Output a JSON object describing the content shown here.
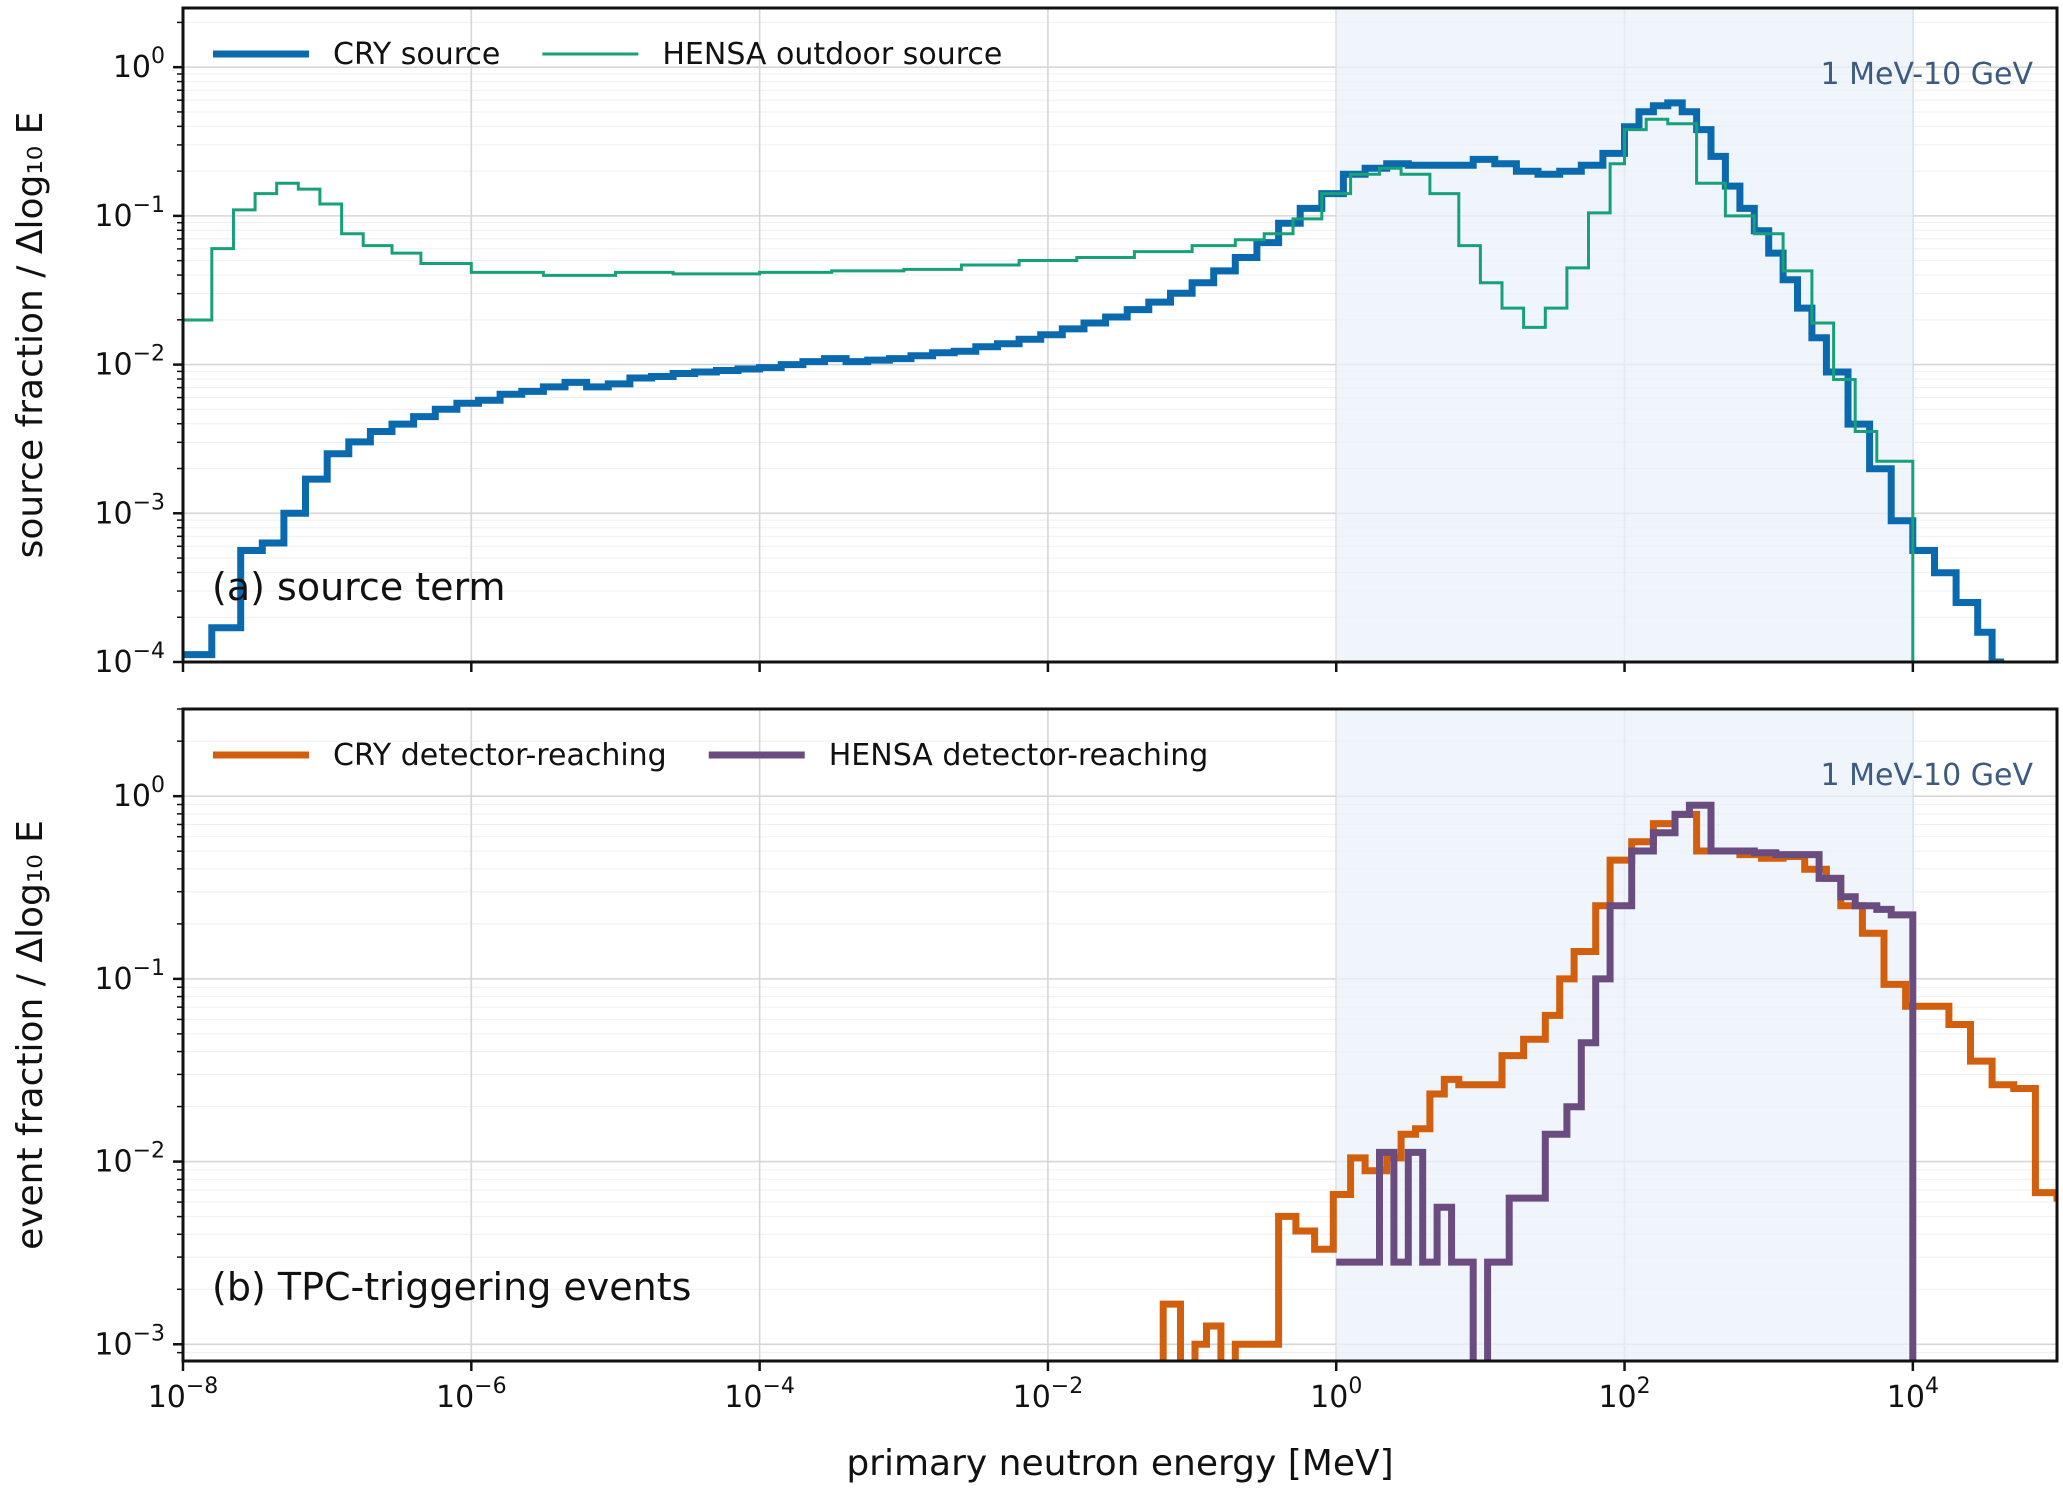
{
  "chart_data": [
    {
      "type": "line",
      "panel_label": "(a) source term",
      "ylabel": "source fraction / Δlog₁₀ E",
      "xlabel": "",
      "xscale": "log",
      "yscale": "log",
      "xlim": [
        1e-08,
        100000.0
      ],
      "ylim": [
        0.0001,
        2.5
      ],
      "x_ticks": [
        {
          "base": "10",
          "exp": "−8"
        },
        {
          "base": "10",
          "exp": "−6"
        },
        {
          "base": "10",
          "exp": "−4"
        },
        {
          "base": "10",
          "exp": "−2"
        },
        {
          "base": "10",
          "exp": "0"
        },
        {
          "base": "10",
          "exp": "2"
        },
        {
          "base": "10",
          "exp": "4"
        }
      ],
      "y_ticks": [
        {
          "base": "10",
          "exp": "0",
          "value": 1
        },
        {
          "base": "10",
          "exp": "−1",
          "value": 0.1
        },
        {
          "base": "10",
          "exp": "−2",
          "value": 0.01
        },
        {
          "base": "10",
          "exp": "−3",
          "value": 0.001
        },
        {
          "base": "10",
          "exp": "−4",
          "value": 0.0001
        }
      ],
      "band": {
        "x": [
          1,
          10000
        ],
        "label": "1 MeV-10 GeV"
      },
      "legend_position": "top-left",
      "grid": true,
      "series": [
        {
          "name": "CRY source",
          "color": "#0a6aad",
          "width": 7,
          "points": [
            [
              -8.0,
              -3.95
            ],
            [
              -7.8,
              -3.77
            ],
            [
              -7.6,
              -3.25
            ],
            [
              -7.45,
              -3.2
            ],
            [
              -7.3,
              -3.0
            ],
            [
              -7.15,
              -2.77
            ],
            [
              -7.0,
              -2.6
            ],
            [
              -6.85,
              -2.52
            ],
            [
              -6.7,
              -2.45
            ],
            [
              -6.55,
              -2.4
            ],
            [
              -6.4,
              -2.35
            ],
            [
              -6.25,
              -2.3
            ],
            [
              -6.1,
              -2.26
            ],
            [
              -5.95,
              -2.24
            ],
            [
              -5.8,
              -2.2
            ],
            [
              -5.65,
              -2.18
            ],
            [
              -5.5,
              -2.15
            ],
            [
              -5.35,
              -2.12
            ],
            [
              -5.2,
              -2.15
            ],
            [
              -5.05,
              -2.13
            ],
            [
              -4.9,
              -2.09
            ],
            [
              -4.75,
              -2.08
            ],
            [
              -4.6,
              -2.06
            ],
            [
              -4.45,
              -2.05
            ],
            [
              -4.3,
              -2.04
            ],
            [
              -4.15,
              -2.03
            ],
            [
              -4.0,
              -2.02
            ],
            [
              -3.85,
              -2.0
            ],
            [
              -3.7,
              -1.98
            ],
            [
              -3.55,
              -1.96
            ],
            [
              -3.4,
              -1.98
            ],
            [
              -3.25,
              -1.97
            ],
            [
              -3.1,
              -1.96
            ],
            [
              -2.95,
              -1.94
            ],
            [
              -2.8,
              -1.92
            ],
            [
              -2.65,
              -1.91
            ],
            [
              -2.5,
              -1.88
            ],
            [
              -2.35,
              -1.86
            ],
            [
              -2.2,
              -1.83
            ],
            [
              -2.05,
              -1.8
            ],
            [
              -1.9,
              -1.76
            ],
            [
              -1.75,
              -1.72
            ],
            [
              -1.6,
              -1.68
            ],
            [
              -1.45,
              -1.63
            ],
            [
              -1.3,
              -1.58
            ],
            [
              -1.15,
              -1.52
            ],
            [
              -1.0,
              -1.45
            ],
            [
              -0.85,
              -1.37
            ],
            [
              -0.7,
              -1.28
            ],
            [
              -0.55,
              -1.18
            ],
            [
              -0.4,
              -1.05
            ],
            [
              -0.25,
              -0.95
            ],
            [
              -0.1,
              -0.85
            ],
            [
              0.05,
              -0.72
            ],
            [
              0.2,
              -0.68
            ],
            [
              0.35,
              -0.65
            ],
            [
              0.5,
              -0.66
            ],
            [
              0.65,
              -0.66
            ],
            [
              0.8,
              -0.66
            ],
            [
              0.95,
              -0.62
            ],
            [
              1.1,
              -0.65
            ],
            [
              1.25,
              -0.7
            ],
            [
              1.4,
              -0.72
            ],
            [
              1.55,
              -0.7
            ],
            [
              1.7,
              -0.66
            ],
            [
              1.85,
              -0.58
            ],
            [
              2.0,
              -0.4
            ],
            [
              2.1,
              -0.3
            ],
            [
              2.2,
              -0.26
            ],
            [
              2.3,
              -0.24
            ],
            [
              2.4,
              -0.3
            ],
            [
              2.5,
              -0.42
            ],
            [
              2.6,
              -0.6
            ],
            [
              2.7,
              -0.8
            ],
            [
              2.8,
              -0.95
            ],
            [
              2.9,
              -1.1
            ],
            [
              3.0,
              -1.25
            ],
            [
              3.1,
              -1.43
            ],
            [
              3.2,
              -1.62
            ],
            [
              3.3,
              -1.82
            ],
            [
              3.4,
              -2.05
            ],
            [
              3.55,
              -2.4
            ],
            [
              3.7,
              -2.7
            ],
            [
              3.85,
              -3.05
            ],
            [
              4.0,
              -3.25
            ],
            [
              4.15,
              -3.4
            ],
            [
              4.3,
              -3.6
            ],
            [
              4.45,
              -3.8
            ],
            [
              4.55,
              -4.0
            ]
          ]
        },
        {
          "name": "HENSA outdoor source",
          "color": "#17a079",
          "width": 3,
          "points": [
            [
              -8.0,
              -1.7
            ],
            [
              -7.8,
              -1.22
            ],
            [
              -7.65,
              -0.96
            ],
            [
              -7.5,
              -0.85
            ],
            [
              -7.35,
              -0.78
            ],
            [
              -7.2,
              -0.82
            ],
            [
              -7.05,
              -0.92
            ],
            [
              -6.9,
              -1.12
            ],
            [
              -6.75,
              -1.2
            ],
            [
              -6.55,
              -1.25
            ],
            [
              -6.35,
              -1.32
            ],
            [
              -6.0,
              -1.38
            ],
            [
              -5.5,
              -1.4
            ],
            [
              -5.0,
              -1.38
            ],
            [
              -4.6,
              -1.39
            ],
            [
              -4.0,
              -1.38
            ],
            [
              -3.5,
              -1.37
            ],
            [
              -3.0,
              -1.36
            ],
            [
              -2.6,
              -1.33
            ],
            [
              -2.2,
              -1.3
            ],
            [
              -1.8,
              -1.28
            ],
            [
              -1.4,
              -1.24
            ],
            [
              -1.0,
              -1.2
            ],
            [
              -0.7,
              -1.16
            ],
            [
              -0.5,
              -1.12
            ],
            [
              -0.3,
              -1.02
            ],
            [
              -0.1,
              -0.85
            ],
            [
              0.1,
              -0.72
            ],
            [
              0.3,
              -0.68
            ],
            [
              0.45,
              -0.72
            ],
            [
              0.65,
              -0.85
            ],
            [
              0.85,
              -1.2
            ],
            [
              1.0,
              -1.45
            ],
            [
              1.15,
              -1.62
            ],
            [
              1.3,
              -1.75
            ],
            [
              1.45,
              -1.62
            ],
            [
              1.6,
              -1.35
            ],
            [
              1.75,
              -0.98
            ],
            [
              1.9,
              -0.65
            ],
            [
              2.0,
              -0.42
            ],
            [
              2.15,
              -0.35
            ],
            [
              2.3,
              -0.38
            ],
            [
              2.5,
              -0.78
            ],
            [
              2.7,
              -1.0
            ],
            [
              2.9,
              -1.12
            ],
            [
              3.1,
              -1.37
            ],
            [
              3.3,
              -1.72
            ],
            [
              3.45,
              -2.1
            ],
            [
              3.6,
              -2.45
            ],
            [
              3.75,
              -2.65
            ],
            [
              3.85,
              -2.65
            ],
            [
              4.0,
              -4.0
            ]
          ]
        }
      ]
    },
    {
      "type": "line",
      "panel_label": "(b) TPC-triggering events",
      "ylabel": "event fraction / Δlog₁₀ E",
      "xlabel": "primary neutron energy [MeV]",
      "xscale": "log",
      "yscale": "log",
      "xlim": [
        1e-08,
        100000.0
      ],
      "ylim": [
        0.00081,
        3.0
      ],
      "x_ticks": [
        {
          "base": "10",
          "exp": "−8"
        },
        {
          "base": "10",
          "exp": "−6"
        },
        {
          "base": "10",
          "exp": "−4"
        },
        {
          "base": "10",
          "exp": "−2"
        },
        {
          "base": "10",
          "exp": "0"
        },
        {
          "base": "10",
          "exp": "2"
        },
        {
          "base": "10",
          "exp": "4"
        }
      ],
      "y_ticks": [
        {
          "base": "10",
          "exp": "0",
          "value": 1
        },
        {
          "base": "10",
          "exp": "−1",
          "value": 0.1
        },
        {
          "base": "10",
          "exp": "−2",
          "value": 0.01
        },
        {
          "base": "10",
          "exp": "−3",
          "value": 0.001
        }
      ],
      "band": {
        "x": [
          1,
          10000
        ],
        "label": "1 MeV-10 GeV"
      },
      "legend_position": "top-left",
      "grid": true,
      "series": [
        {
          "name": "CRY detector-reaching",
          "color": "#d15f0d",
          "width": 7,
          "points": [
            [
              -1.3,
              -3.35
            ],
            [
              -1.2,
              -2.78
            ],
            [
              -1.08,
              -3.35
            ],
            [
              -0.98,
              -3.0
            ],
            [
              -0.9,
              -2.9
            ],
            [
              -0.8,
              -3.35
            ],
            [
              -0.7,
              -3.0
            ],
            [
              -0.5,
              -3.0
            ],
            [
              -0.4,
              -2.3
            ],
            [
              -0.28,
              -2.38
            ],
            [
              -0.15,
              -2.48
            ],
            [
              -0.02,
              -2.18
            ],
            [
              0.1,
              -1.98
            ],
            [
              0.2,
              -2.05
            ],
            [
              0.35,
              -1.98
            ],
            [
              0.45,
              -1.85
            ],
            [
              0.55,
              -1.82
            ],
            [
              0.65,
              -1.63
            ],
            [
              0.75,
              -1.55
            ],
            [
              0.85,
              -1.58
            ],
            [
              1.0,
              -1.58
            ],
            [
              1.15,
              -1.42
            ],
            [
              1.3,
              -1.33
            ],
            [
              1.45,
              -1.2
            ],
            [
              1.55,
              -1.0
            ],
            [
              1.65,
              -0.85
            ],
            [
              1.8,
              -0.6
            ],
            [
              1.9,
              -0.35
            ],
            [
              2.05,
              -0.25
            ],
            [
              2.2,
              -0.15
            ],
            [
              2.35,
              -0.1
            ],
            [
              2.5,
              -0.3
            ],
            [
              2.65,
              -0.3
            ],
            [
              2.8,
              -0.32
            ],
            [
              2.95,
              -0.34
            ],
            [
              3.1,
              -0.33
            ],
            [
              3.25,
              -0.4
            ],
            [
              3.4,
              -0.45
            ],
            [
              3.5,
              -0.6
            ],
            [
              3.65,
              -0.75
            ],
            [
              3.8,
              -1.03
            ],
            [
              3.95,
              -1.15
            ],
            [
              4.1,
              -1.15
            ],
            [
              4.25,
              -1.25
            ],
            [
              4.4,
              -1.45
            ],
            [
              4.55,
              -1.58
            ],
            [
              4.7,
              -1.6
            ],
            [
              4.85,
              -2.17
            ],
            [
              5.0,
              -2.2
            ]
          ]
        },
        {
          "name": "HENSA detector-reaching",
          "color": "#6b4c80",
          "width": 7,
          "points": [
            [
              0.0,
              -2.55
            ],
            [
              0.3,
              -2.55
            ],
            [
              0.3,
              -1.95
            ],
            [
              0.4,
              -2.55
            ],
            [
              0.5,
              -1.95
            ],
            [
              0.6,
              -2.55
            ],
            [
              0.7,
              -2.25
            ],
            [
              0.8,
              -2.55
            ],
            [
              0.95,
              -2.55
            ],
            [
              0.95,
              -3.5
            ],
            [
              1.05,
              -2.55
            ],
            [
              1.15,
              -2.55
            ],
            [
              1.2,
              -2.2
            ],
            [
              1.35,
              -2.2
            ],
            [
              1.45,
              -1.85
            ],
            [
              1.6,
              -1.7
            ],
            [
              1.7,
              -1.35
            ],
            [
              1.8,
              -1.0
            ],
            [
              1.9,
              -0.6
            ],
            [
              2.05,
              -0.3
            ],
            [
              2.2,
              -0.2
            ],
            [
              2.35,
              -0.1
            ],
            [
              2.45,
              -0.05
            ],
            [
              2.6,
              -0.3
            ],
            [
              2.75,
              -0.3
            ],
            [
              2.9,
              -0.31
            ],
            [
              3.05,
              -0.32
            ],
            [
              3.2,
              -0.32
            ],
            [
              3.35,
              -0.45
            ],
            [
              3.5,
              -0.55
            ],
            [
              3.6,
              -0.6
            ],
            [
              3.75,
              -0.62
            ],
            [
              3.85,
              -0.65
            ],
            [
              4.0,
              -0.72
            ],
            [
              4.0,
              -3.5
            ]
          ]
        }
      ]
    }
  ]
}
